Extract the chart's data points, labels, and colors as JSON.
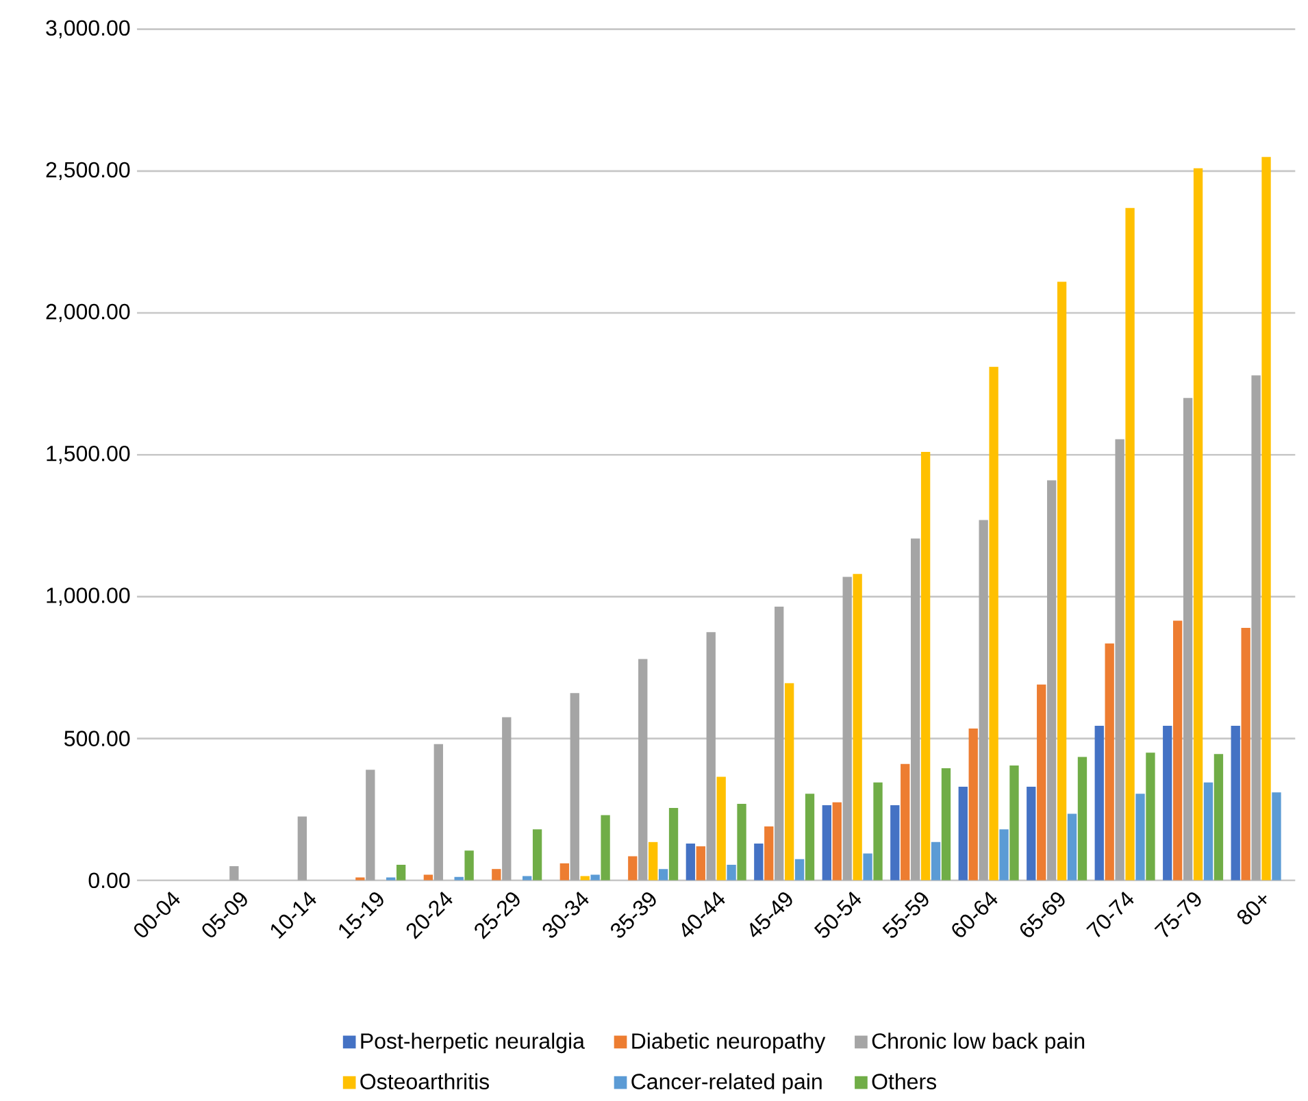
{
  "chart_data": {
    "type": "bar",
    "categories": [
      "00-04",
      "05-09",
      "10-14",
      "15-19",
      "20-24",
      "25-29",
      "30-34",
      "35-39",
      "40-44",
      "45-49",
      "50-54",
      "55-59",
      "60-64",
      "65-69",
      "70-74",
      "75-79",
      "80+"
    ],
    "series": [
      {
        "name": "Post-herpetic neuralgia",
        "color": "#4472c4",
        "values": [
          0,
          0,
          0,
          0,
          0,
          0,
          0,
          0,
          130,
          130,
          265,
          265,
          330,
          330,
          545,
          545,
          545
        ]
      },
      {
        "name": "Diabetic neuropathy",
        "color": "#ed7d31",
        "values": [
          0,
          0,
          0,
          10,
          20,
          40,
          60,
          85,
          120,
          190,
          275,
          410,
          535,
          690,
          835,
          915,
          890
        ]
      },
      {
        "name": "Chronic low back pain",
        "color": "#a5a5a5",
        "values": [
          0,
          50,
          225,
          390,
          480,
          575,
          660,
          780,
          875,
          965,
          1070,
          1205,
          1270,
          1410,
          1555,
          1700,
          1780
        ]
      },
      {
        "name": "Osteoarthritis",
        "color": "#ffc000",
        "values": [
          0,
          0,
          0,
          0,
          0,
          0,
          15,
          135,
          365,
          695,
          1080,
          1510,
          1810,
          2110,
          2370,
          2510,
          2550
        ]
      },
      {
        "name": "Cancer-related pain",
        "color": "#5b9bd5",
        "values": [
          0,
          0,
          0,
          10,
          12,
          15,
          20,
          40,
          55,
          75,
          95,
          135,
          180,
          235,
          305,
          345,
          310
        ]
      },
      {
        "name": "Others",
        "color": "#70ad47",
        "values": [
          0,
          0,
          0,
          55,
          105,
          180,
          230,
          255,
          270,
          305,
          345,
          395,
          405,
          435,
          450,
          445,
          null
        ]
      }
    ],
    "ylim": [
      0,
      3000
    ],
    "yticks": [
      {
        "value": 0,
        "label": "0.00"
      },
      {
        "value": 500,
        "label": "500.00"
      },
      {
        "value": 1000,
        "label": "1,000.00"
      },
      {
        "value": 1500,
        "label": "1,500.00"
      },
      {
        "value": 2000,
        "label": "2,000.00"
      },
      {
        "value": 2500,
        "label": "2,500.00"
      },
      {
        "value": 3000,
        "label": "3,000.00"
      }
    ],
    "grid": "y",
    "legend": "bottom"
  }
}
